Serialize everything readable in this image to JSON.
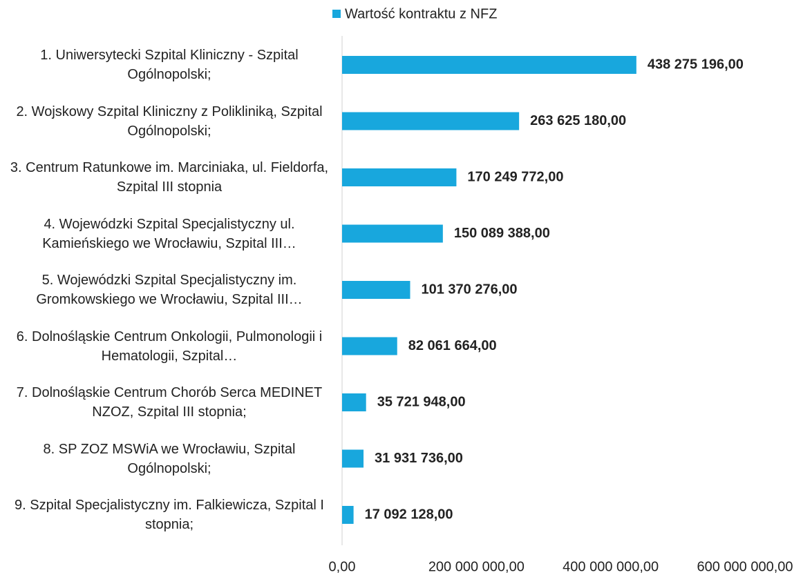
{
  "chart_data": {
    "type": "bar",
    "orientation": "horizontal",
    "categories": [
      "1. Uniwersytecki Szpital Kliniczny - Szpital Ogólnopolski;",
      "2. Wojskowy Szpital Kliniczny z Polikliniką, Szpital Ogólnopolski;",
      "3. Centrum Ratunkowe im. Marciniaka, ul. Fieldorfa, Szpital III stopnia",
      "4. Wojewódzki Szpital Specjalistyczny ul. Kamieńskiego we Wrocławiu, Szpital III…",
      "5. Wojewódzki Szpital Specjalistyczny im. Gromkowskiego we Wrocławiu, Szpital III…",
      "6. Dolnośląskie Centrum Onkologii, Pulmonologii i Hematologii, Szpital…",
      "7. Dolnośląskie Centrum Chorób Serca MEDINET NZOZ, Szpital III stopnia;",
      "8. SP ZOZ MSWiA we Wrocławiu, Szpital Ogólnopolski;",
      "9. Szpital Specjalistyczny im. Falkiewicza, Szpital I stopnia;"
    ],
    "series": [
      {
        "name": "Wartość kontraktu z NFZ",
        "color": "#18a7dd",
        "values": [
          438275196,
          263625180,
          170249772,
          150089388,
          101370276,
          82061664,
          35721948,
          31931736,
          17092128
        ],
        "value_labels": [
          "438 275 196,00",
          "263 625 180,00",
          "170 249 772,00",
          "150 089 388,00",
          "101 370 276,00",
          "82 061 664,00",
          "35 721 948,00",
          "31 931 736,00",
          "17 092 128,00"
        ]
      }
    ],
    "xlim": [
      0,
      600000000
    ],
    "xticks": [
      {
        "value": 0,
        "label": "0,00"
      },
      {
        "value": 200000000,
        "label": "200 000 000,00"
      },
      {
        "value": 400000000,
        "label": "400 000 000,00"
      },
      {
        "value": 600000000,
        "label": "600 000 000,00"
      }
    ],
    "legend": "top"
  }
}
